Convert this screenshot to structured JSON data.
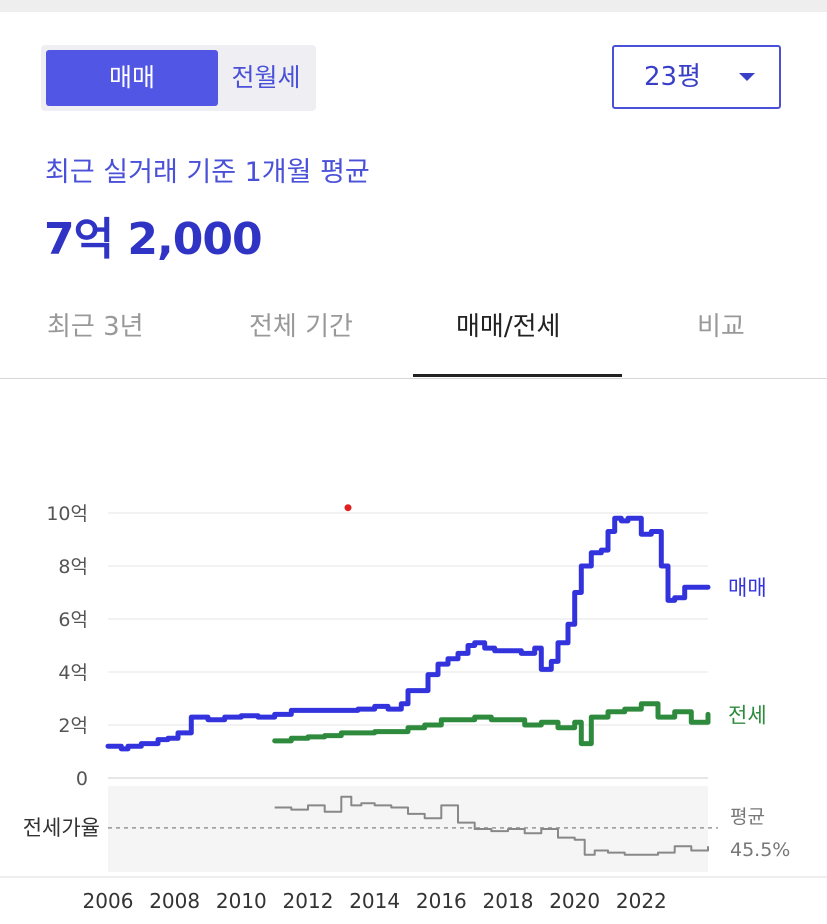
{
  "deal_toggle": {
    "options": [
      "매매",
      "전월세"
    ],
    "selected": "매매"
  },
  "size_select": {
    "value": "23평"
  },
  "summary": {
    "label": "최근 실거래 기준 1개월 평균",
    "price": "7억 2,000"
  },
  "tabs": [
    {
      "label": "최근 3년",
      "active": false
    },
    {
      "label": "전체 기간",
      "active": false
    },
    {
      "label": "매매/전세",
      "active": true
    },
    {
      "label": "비교",
      "active": false
    }
  ],
  "colors": {
    "accent": "#4a50d8",
    "sale": "#3333dd",
    "jeonse": "#2e8b3e",
    "ratio": "#888888",
    "marker": "#e02020"
  },
  "chart_data": {
    "type": "line",
    "x_ticks": [
      "2006",
      "2008",
      "2010",
      "2012",
      "2014",
      "2016",
      "2018",
      "2020",
      "2022"
    ],
    "xlim": [
      2006,
      2024
    ],
    "ylim": [
      0,
      10
    ],
    "y_ticks": [
      {
        "value": 0,
        "label": "0"
      },
      {
        "value": 2,
        "label": "2억"
      },
      {
        "value": 4,
        "label": "4억"
      },
      {
        "value": 6,
        "label": "6억"
      },
      {
        "value": 8,
        "label": "8억"
      },
      {
        "value": 10,
        "label": "10억"
      }
    ],
    "grid": true,
    "series": [
      {
        "name": "매매",
        "color": "#3333dd",
        "x": [
          2006.0,
          2006.4,
          2006.6,
          2007.0,
          2007.5,
          2007.8,
          2008.1,
          2008.5,
          2009.0,
          2009.5,
          2010.0,
          2010.5,
          2011.0,
          2011.5,
          2012.0,
          2012.5,
          2013.0,
          2013.5,
          2014.0,
          2014.4,
          2014.8,
          2015.0,
          2015.3,
          2015.6,
          2015.9,
          2016.2,
          2016.5,
          2016.8,
          2017.0,
          2017.3,
          2017.6,
          2018.0,
          2018.4,
          2018.8,
          2019.0,
          2019.3,
          2019.5,
          2019.8,
          2020.0,
          2020.2,
          2020.5,
          2020.8,
          2021.0,
          2021.2,
          2021.4,
          2021.6,
          2022.0,
          2022.3,
          2022.6,
          2022.8,
          2023.0,
          2023.3,
          2023.5,
          2024.0
        ],
        "y": [
          1.2,
          1.1,
          1.2,
          1.3,
          1.45,
          1.5,
          1.7,
          2.3,
          2.2,
          2.3,
          2.35,
          2.3,
          2.4,
          2.55,
          2.55,
          2.55,
          2.55,
          2.6,
          2.7,
          2.6,
          2.8,
          3.3,
          3.3,
          3.9,
          4.3,
          4.5,
          4.7,
          5.0,
          5.1,
          4.9,
          4.8,
          4.8,
          4.7,
          4.9,
          4.1,
          4.4,
          5.1,
          5.8,
          7.0,
          8.0,
          8.5,
          8.6,
          9.3,
          9.8,
          9.7,
          9.8,
          9.2,
          9.3,
          8.0,
          6.7,
          6.8,
          7.2,
          7.2,
          7.2
        ]
      },
      {
        "name": "전세",
        "color": "#2e8b3e",
        "x": [
          2011.0,
          2011.5,
          2012.0,
          2012.5,
          2013.0,
          2013.5,
          2014.0,
          2014.5,
          2015.0,
          2015.5,
          2016.0,
          2016.5,
          2017.0,
          2017.5,
          2018.0,
          2018.5,
          2019.0,
          2019.5,
          2020.0,
          2020.2,
          2020.5,
          2021.0,
          2021.5,
          2022.0,
          2022.5,
          2023.0,
          2023.5,
          2024.0
        ],
        "y": [
          1.4,
          1.5,
          1.55,
          1.6,
          1.7,
          1.7,
          1.75,
          1.75,
          1.9,
          2.0,
          2.2,
          2.2,
          2.3,
          2.2,
          2.2,
          2.0,
          2.1,
          1.9,
          2.1,
          1.3,
          2.3,
          2.5,
          2.6,
          2.8,
          2.3,
          2.5,
          2.1,
          2.4
        ]
      }
    ],
    "series_labels": [
      "매매",
      "전세"
    ],
    "ratio_panel": {
      "label": "전세가율",
      "avg_label": "평균",
      "avg_value": "45.5%",
      "average": 45.5,
      "ylim": [
        25,
        65
      ],
      "color": "#888888",
      "x": [
        2011.0,
        2011.5,
        2012.0,
        2012.5,
        2013.0,
        2013.3,
        2013.6,
        2014.0,
        2014.5,
        2015.0,
        2015.5,
        2016.0,
        2016.5,
        2017.0,
        2017.5,
        2018.0,
        2018.5,
        2019.0,
        2019.5,
        2020.0,
        2020.3,
        2020.6,
        2021.0,
        2021.5,
        2022.0,
        2022.5,
        2023.0,
        2023.5,
        2024.0
      ],
      "y": [
        55,
        54,
        56,
        53,
        60,
        56,
        57,
        56,
        55,
        52,
        50,
        56,
        48,
        45,
        44,
        45,
        43,
        45,
        41,
        40,
        33,
        35,
        34,
        33,
        33,
        34,
        37,
        35,
        37
      ]
    },
    "marker": {
      "x": 2013.2,
      "y": 10.2
    }
  }
}
